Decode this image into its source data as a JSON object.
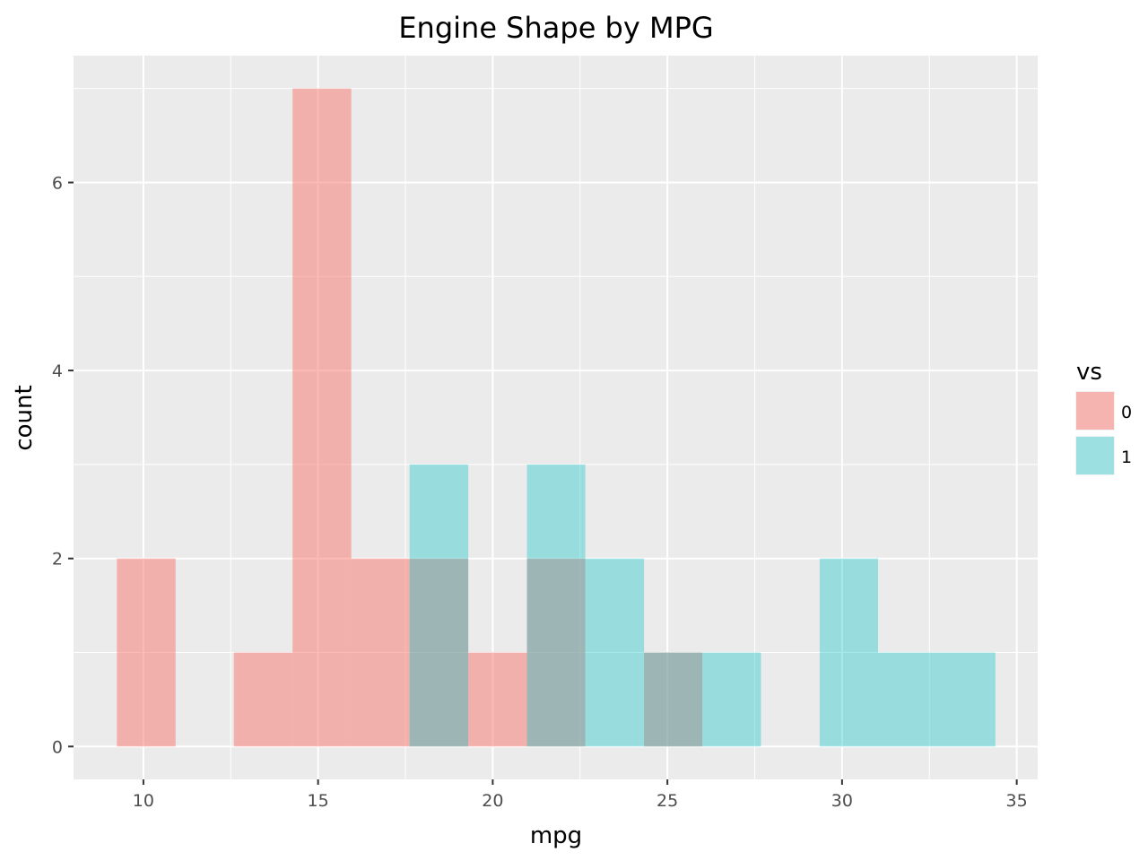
{
  "chart_data": {
    "type": "histogram",
    "title": "Engine Shape by MPG",
    "xlabel": "mpg",
    "ylabel": "count",
    "xlim": [
      8.0,
      35.6
    ],
    "ylim": [
      -0.35,
      7.35
    ],
    "x_ticks": [
      10,
      15,
      20,
      25,
      30,
      35
    ],
    "y_ticks": [
      0,
      2,
      4,
      6
    ],
    "grid": true,
    "bin_width": 1.676,
    "bin_start": 9.24,
    "legend": {
      "title": "vs",
      "position": "right",
      "entries": [
        {
          "label": "0",
          "color": "#F8766D"
        },
        {
          "label": "1",
          "color": "#00BFC4"
        }
      ]
    },
    "series": [
      {
        "key": "0",
        "color": "#F8766D",
        "opacity": 0.5,
        "bins": [
          {
            "x0": 9.24,
            "x1": 10.92,
            "count": 2
          },
          {
            "x0": 12.59,
            "x1": 14.27,
            "count": 1
          },
          {
            "x0": 14.27,
            "x1": 15.95,
            "count": 7
          },
          {
            "x0": 15.95,
            "x1": 17.62,
            "count": 2
          },
          {
            "x0": 17.62,
            "x1": 19.3,
            "count": 2
          },
          {
            "x0": 19.3,
            "x1": 20.98,
            "count": 1
          },
          {
            "x0": 20.98,
            "x1": 22.65,
            "count": 2
          },
          {
            "x0": 24.33,
            "x1": 26.0,
            "count": 1
          }
        ]
      },
      {
        "key": "1",
        "color": "#00BFC4",
        "opacity": 0.35,
        "bins": [
          {
            "x0": 17.62,
            "x1": 19.3,
            "count": 3
          },
          {
            "x0": 20.98,
            "x1": 22.65,
            "count": 3
          },
          {
            "x0": 22.65,
            "x1": 24.33,
            "count": 2
          },
          {
            "x0": 24.33,
            "x1": 26.0,
            "count": 1
          },
          {
            "x0": 26.0,
            "x1": 27.68,
            "count": 1
          },
          {
            "x0": 29.36,
            "x1": 31.03,
            "count": 2
          },
          {
            "x0": 31.03,
            "x1": 32.71,
            "count": 1
          },
          {
            "x0": 32.71,
            "x1": 34.39,
            "count": 1
          }
        ]
      }
    ]
  }
}
